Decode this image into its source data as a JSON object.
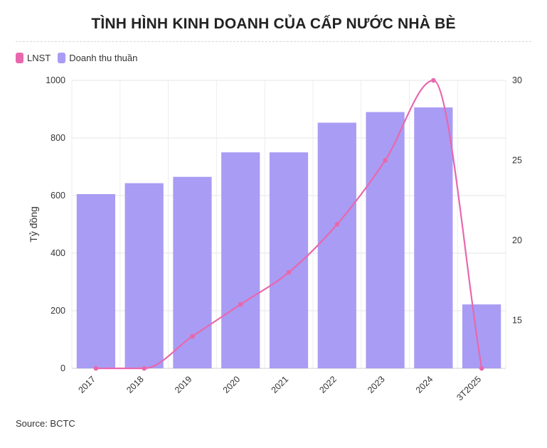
{
  "title": "TÌNH HÌNH KINH DOANH CỦA CẤP NƯỚC NHÀ BÈ",
  "source": "Source: BCTC",
  "legend": [
    {
      "label": "LNST",
      "color": "#e868ad"
    },
    {
      "label": "Doanh thu thuần",
      "color": "#a99cf4"
    }
  ],
  "chart_data": {
    "type": "bar",
    "categories": [
      "2017",
      "2018",
      "2019",
      "2020",
      "2021",
      "2022",
      "2023",
      "2024",
      "3T2025"
    ],
    "series": [
      {
        "name": "Doanh thu thuần",
        "type": "bar",
        "axis": "left",
        "color": "#a99cf4",
        "values": [
          605,
          643,
          665,
          750,
          750,
          853,
          890,
          906,
          222
        ]
      },
      {
        "name": "LNST",
        "type": "line",
        "axis": "right",
        "color": "#e868ad",
        "values": [
          12,
          12,
          14,
          16,
          18,
          21,
          25,
          30,
          12
        ]
      }
    ],
    "ylabel": "Tỷ đồng",
    "ylim": [
      0,
      1000
    ],
    "yticks": [
      0,
      200,
      400,
      600,
      800,
      1000
    ],
    "y2lim": [
      12,
      30
    ],
    "y2ticks": [
      15,
      20,
      25,
      30
    ],
    "grid": true,
    "legend_position": "top-left"
  }
}
